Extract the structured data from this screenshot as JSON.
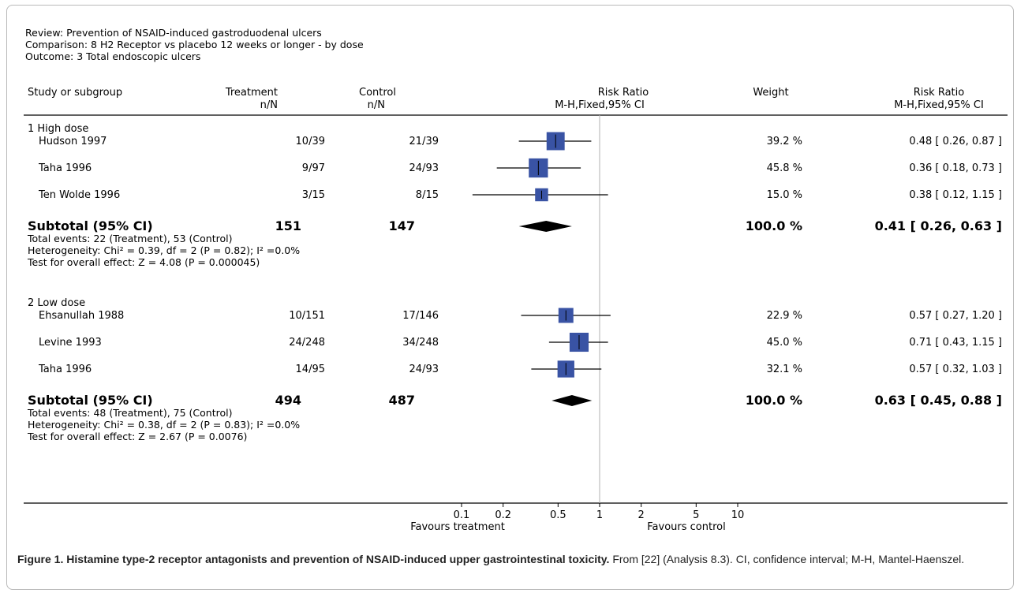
{
  "header": {
    "review": "Review: Prevention of NSAID-induced gastroduodenal ulcers",
    "comparison": "Comparison: 8 H2 Receptor vs placebo 12 weeks or longer - by dose",
    "outcome": "Outcome: 3 Total endoscopic ulcers"
  },
  "columns": {
    "study": "Study or subgroup",
    "treatment": "Treatment",
    "treatment_sub": "n/N",
    "control": "Control",
    "control_sub": "n/N",
    "rr_plot": "Risk Ratio",
    "rr_plot_sub": "M-H,Fixed,95% CI",
    "weight": "Weight",
    "rr_text": "Risk Ratio",
    "rr_text_sub": "M-H,Fixed,95% CI"
  },
  "chart_data": {
    "type": "forest",
    "scale": "log",
    "axis_ticks": [
      0.1,
      0.2,
      0.5,
      1,
      2,
      5,
      10
    ],
    "axis_tick_labels": [
      "0.1",
      "0.2",
      "0.5",
      "1",
      "2",
      "5",
      "10"
    ],
    "xlim": [
      0.1,
      10
    ],
    "axis_left_label": "Favours treatment",
    "axis_right_label": "Favours control",
    "subgroups": [
      {
        "title": "1 High dose",
        "studies": [
          {
            "name": "Hudson 1997",
            "treatment": "10/39",
            "control": "21/39",
            "rr": 0.48,
            "lo": 0.26,
            "hi": 0.87,
            "weight": 39.2,
            "weight_label": "39.2 %",
            "ci_label": "0.48 [ 0.26, 0.87 ]"
          },
          {
            "name": "Taha 1996",
            "treatment": "9/97",
            "control": "24/93",
            "rr": 0.36,
            "lo": 0.18,
            "hi": 0.73,
            "weight": 45.8,
            "weight_label": "45.8 %",
            "ci_label": "0.36 [ 0.18, 0.73 ]"
          },
          {
            "name": "Ten Wolde 1996",
            "treatment": "3/15",
            "control": "8/15",
            "rr": 0.38,
            "lo": 0.12,
            "hi": 1.15,
            "weight": 15.0,
            "weight_label": "15.0 %",
            "ci_label": "0.38 [ 0.12, 1.15 ]"
          }
        ],
        "subtotal": {
          "label": "Subtotal (95% CI)",
          "treatment": "151",
          "control": "147",
          "rr": 0.41,
          "lo": 0.26,
          "hi": 0.63,
          "weight_label": "100.0 %",
          "ci_label": "0.41 [ 0.26, 0.63 ]"
        },
        "notes": [
          "Total events: 22 (Treatment), 53 (Control)",
          "Heterogeneity: Chi² = 0.39, df = 2 (P = 0.82); I² =0.0%",
          "Test for overall effect: Z = 4.08 (P = 0.000045)"
        ]
      },
      {
        "title": "2 Low dose",
        "studies": [
          {
            "name": "Ehsanullah 1988",
            "treatment": "10/151",
            "control": "17/146",
            "rr": 0.57,
            "lo": 0.27,
            "hi": 1.2,
            "weight": 22.9,
            "weight_label": "22.9 %",
            "ci_label": "0.57 [ 0.27, 1.20 ]"
          },
          {
            "name": "Levine 1993",
            "treatment": "24/248",
            "control": "34/248",
            "rr": 0.71,
            "lo": 0.43,
            "hi": 1.15,
            "weight": 45.0,
            "weight_label": "45.0 %",
            "ci_label": "0.71 [ 0.43, 1.15 ]"
          },
          {
            "name": "Taha 1996",
            "treatment": "14/95",
            "control": "24/93",
            "rr": 0.57,
            "lo": 0.32,
            "hi": 1.03,
            "weight": 32.1,
            "weight_label": "32.1 %",
            "ci_label": "0.57 [ 0.32, 1.03 ]"
          }
        ],
        "subtotal": {
          "label": "Subtotal (95% CI)",
          "treatment": "494",
          "control": "487",
          "rr": 0.63,
          "lo": 0.45,
          "hi": 0.88,
          "weight_label": "100.0 %",
          "ci_label": "0.63 [ 0.45, 0.88 ]"
        },
        "notes": [
          "Total events: 48 (Treatment), 75 (Control)",
          "Heterogeneity: Chi² = 0.38, df = 2 (P = 0.83); I² =0.0%",
          "Test for overall effect: Z = 2.67 (P = 0.0076)"
        ]
      }
    ]
  },
  "caption": {
    "bold": "Figure 1. Histamine type-2 receptor antagonists and prevention of NSAID-induced upper gastrointestinal toxicity.",
    "rest": "From [22] (Analysis 8.3). CI, confidence interval; M-H, Mantel-Haenszel."
  },
  "colors": {
    "box": "#3953a4",
    "diamond": "#000000",
    "null_line": "#b0b0b0",
    "frame": "#b9b9b9"
  }
}
